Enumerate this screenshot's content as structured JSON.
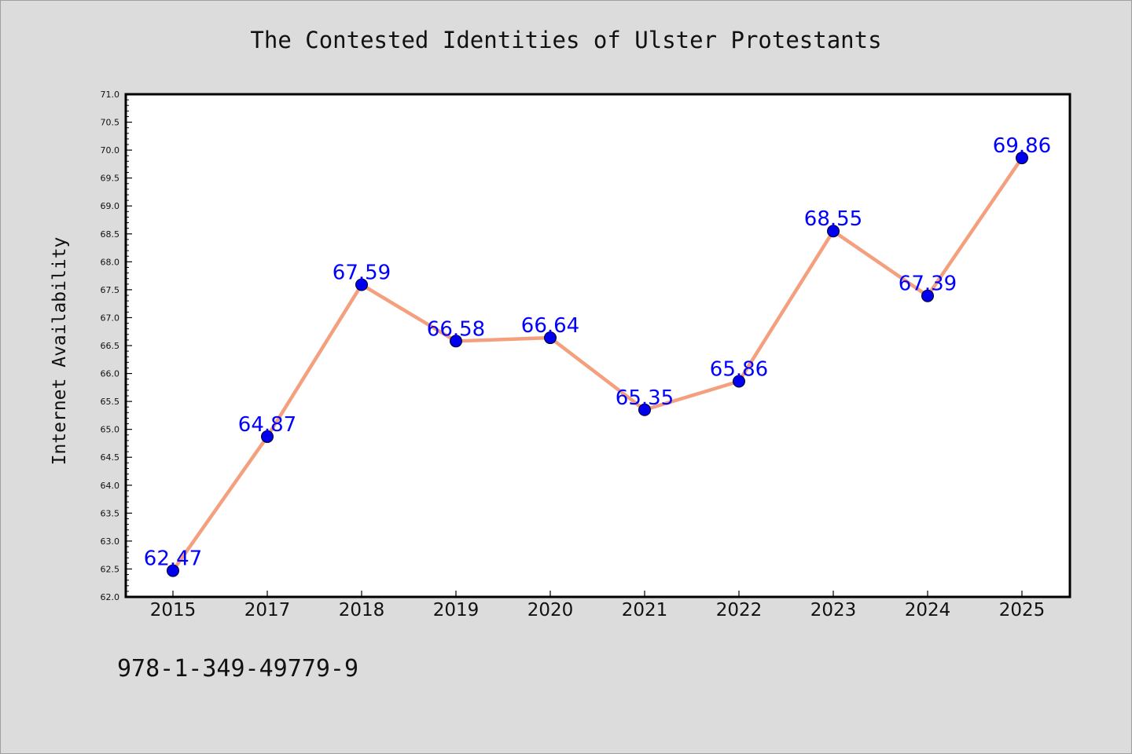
{
  "chart_data": {
    "type": "line",
    "title": "The Contested Identities of Ulster Protestants",
    "xlabel": "",
    "ylabel": "Internet Availability",
    "categories": [
      "2015",
      "2017",
      "2018",
      "2019",
      "2020",
      "2021",
      "2022",
      "2023",
      "2024",
      "2025"
    ],
    "series": [
      {
        "values": [
          62.47,
          64.87,
          67.59,
          66.58,
          66.64,
          65.35,
          65.86,
          68.55,
          67.39,
          69.86
        ],
        "line_color": "#f4a07e",
        "marker_color": "#0000ee",
        "label_color": "#0000ff"
      }
    ],
    "ylim": [
      62.0,
      71.0
    ],
    "yticks": [
      "62.0",
      "62.5",
      "63.0",
      "63.5",
      "64.0",
      "64.5",
      "65.0",
      "65.5",
      "66.0",
      "66.5",
      "67.0",
      "67.5",
      "68.0",
      "68.5",
      "69.0",
      "69.5",
      "70.0",
      "70.5",
      "71.0"
    ],
    "grid": false,
    "legend": "none",
    "data_labels": true
  },
  "footnote": "978-1-349-49779-9"
}
